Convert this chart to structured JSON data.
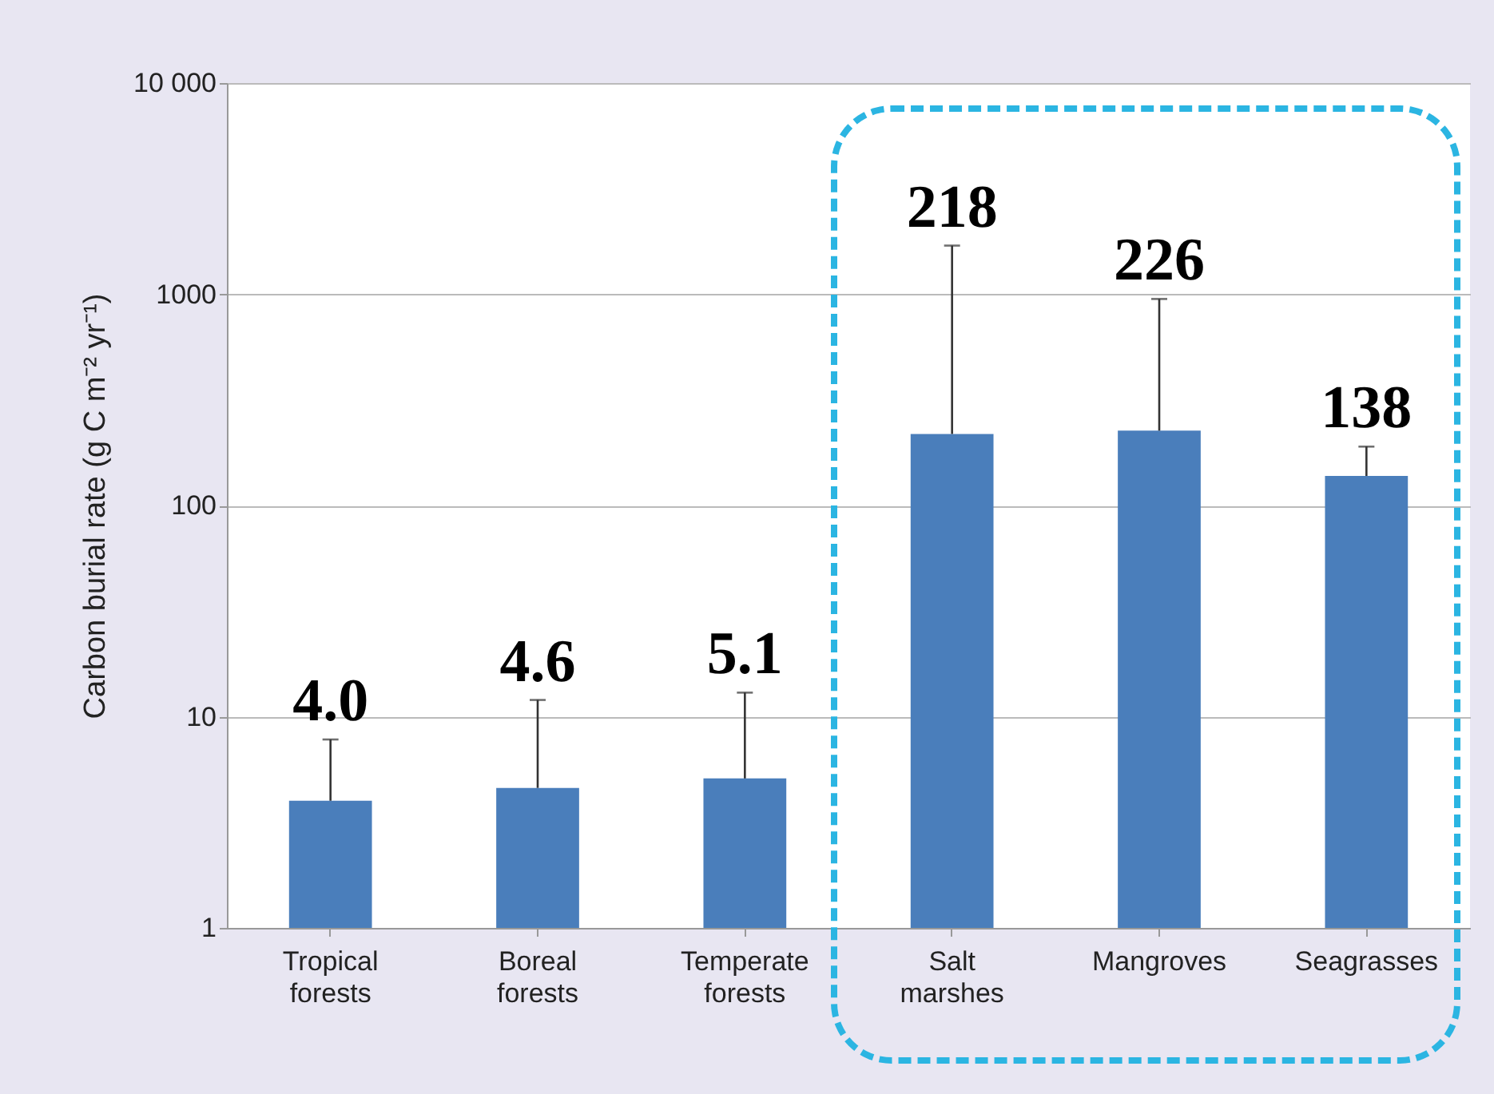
{
  "chart_data": {
    "type": "bar",
    "ylabel": "Carbon burial rate (g C m⁻² yr⁻¹)",
    "categories": [
      "Tropical forests",
      "Boreal forests",
      "Temperate forests",
      "Salt marshes",
      "Mangroves",
      "Seagrasses"
    ],
    "values": [
      4.0,
      4.6,
      5.1,
      218,
      226,
      138
    ],
    "value_labels": [
      "4.0",
      "4.6",
      "5.1",
      "218",
      "226",
      "138"
    ],
    "errors": [
      [
        4.0,
        7.8
      ],
      [
        4.6,
        12
      ],
      [
        5.1,
        13
      ],
      [
        218,
        1700
      ],
      [
        226,
        950
      ],
      [
        138,
        190
      ]
    ],
    "color": "#4a7ebb",
    "log": "y",
    "ylim": [
      1,
      10000
    ],
    "yticks": [
      1,
      10,
      100,
      1000,
      {
        "value": 10000,
        "label": "10 000"
      }
    ],
    "grid": "y"
  }
}
